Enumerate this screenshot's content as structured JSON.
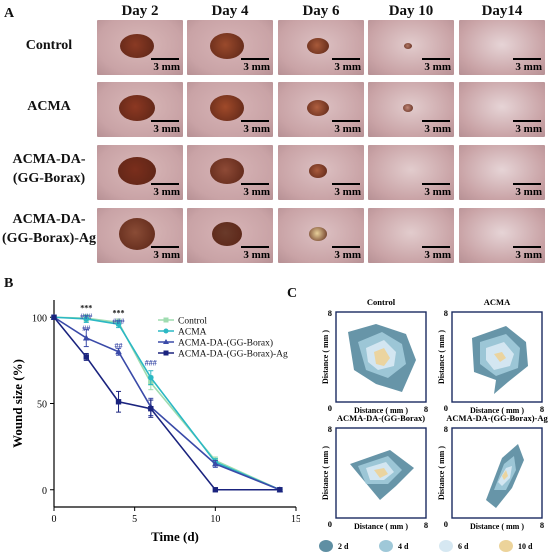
{
  "panel_a": {
    "letter": "A",
    "days": [
      "Day 2",
      "Day 4",
      "Day 6",
      "Day 10",
      "Day14"
    ],
    "rows": [
      {
        "label_lines": [
          "Control"
        ]
      },
      {
        "label_lines": [
          "ACMA"
        ]
      },
      {
        "label_lines": [
          "ACMA-DA-",
          "(GG-Borax)"
        ]
      },
      {
        "label_lines": [
          "ACMA-DA-",
          "(GG-Borax)-Ag"
        ]
      }
    ],
    "scale_label": "3 mm"
  },
  "panel_b": {
    "letter": "B",
    "chart_data": {
      "type": "line",
      "xlabel": "Time (d)",
      "ylabel": "Wound size (%)",
      "xlim": [
        0,
        15
      ],
      "ylim": [
        -10,
        110
      ],
      "xticks": [
        "0",
        "5",
        "10",
        "15"
      ],
      "yticks": [
        "0",
        "50",
        "100"
      ],
      "x": [
        0,
        2,
        4,
        6,
        10,
        14
      ],
      "series": [
        {
          "name": "Control",
          "color": "#9fdcb0",
          "marker": "square",
          "values": [
            100,
            99.5,
            97,
            62,
            17,
            0
          ],
          "errors": [
            0,
            2,
            2,
            4,
            2,
            0
          ]
        },
        {
          "name": "ACMA",
          "color": "#2bb8c4",
          "marker": "circle",
          "values": [
            100,
            99,
            96,
            65,
            16,
            0
          ],
          "errors": [
            0,
            2,
            2,
            4,
            2,
            0
          ]
        },
        {
          "name": "ACMA-DA-(GG-Borax)",
          "color": "#3a4aa8",
          "marker": "triangle",
          "values": [
            100,
            88,
            80,
            48,
            15,
            0
          ],
          "errors": [
            0,
            5,
            2,
            5,
            2,
            0
          ]
        },
        {
          "name": "ACMA-DA-(GG-Borax)-Ag",
          "color": "#1a237e",
          "marker": "square",
          "values": [
            100,
            77,
            51,
            47,
            0,
            0
          ],
          "errors": [
            0,
            2,
            6,
            5,
            0,
            0
          ]
        }
      ],
      "annotations": [
        {
          "x": 2,
          "y": 104,
          "text": "***"
        },
        {
          "x": 2,
          "y": 99,
          "text": "###"
        },
        {
          "x": 2,
          "y": 92,
          "text": "##"
        },
        {
          "x": 4,
          "y": 101,
          "text": "***"
        },
        {
          "x": 4,
          "y": 96,
          "text": "###"
        },
        {
          "x": 4,
          "y": 82,
          "text": "##"
        },
        {
          "x": 6,
          "y": 72,
          "text": "###"
        }
      ],
      "legend_position": "top-right"
    }
  },
  "panel_c": {
    "letter": "C",
    "plots": [
      {
        "title": "Control"
      },
      {
        "title": "ACMA"
      },
      {
        "title": "ACMA-DA-(GG-Borax)"
      },
      {
        "title": "ACMA-DA-(GG-Borax)-Ag"
      }
    ],
    "axis_label": "Distance ( mm )",
    "tick_max": "8",
    "tick_min": "0",
    "legend": [
      {
        "label": "2 d",
        "color": "#5f8fa3"
      },
      {
        "label": "4 d",
        "color": "#9fc8d8"
      },
      {
        "label": "6 d",
        "color": "#d6e8f2"
      },
      {
        "label": "10 d",
        "color": "#ecd39a"
      }
    ]
  }
}
